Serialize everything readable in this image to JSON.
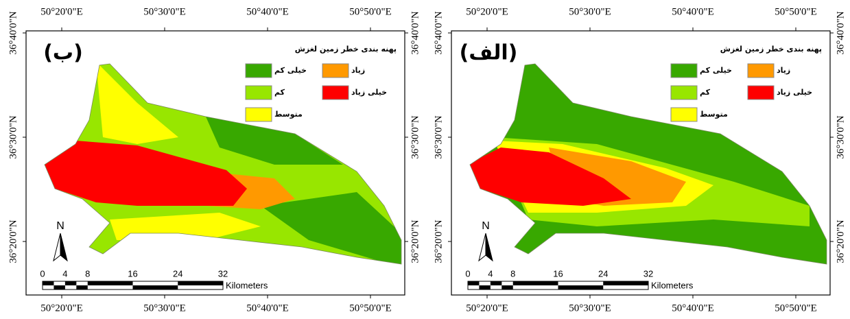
{
  "map_frame": {
    "x_labels": [
      "50°20'0\"E",
      "50°30'0\"E",
      "50°40'0\"E",
      "50°50'0\"E"
    ],
    "y_labels": [
      "36°40'0\"N",
      "36°30'0\"N",
      "36°20'0\"N"
    ]
  },
  "legend": {
    "title": "پهنه بندی خطر زمین لغزش",
    "items": [
      {
        "label": "خیلی کم",
        "color": "#38a800"
      },
      {
        "label": "کم",
        "color": "#98e600"
      },
      {
        "label": "متوسط",
        "color": "#ffff00"
      },
      {
        "label": "زیاد",
        "color": "#ff9900"
      },
      {
        "label": "خیلی زیاد",
        "color": "#ff0000"
      }
    ]
  },
  "scale_bar": {
    "ticks": [
      0,
      4,
      8,
      16,
      24,
      32
    ],
    "unit": "Kilometers"
  },
  "north_label": "N",
  "panels": [
    {
      "label": "(ب)"
    },
    {
      "label": "(الف)"
    }
  ]
}
